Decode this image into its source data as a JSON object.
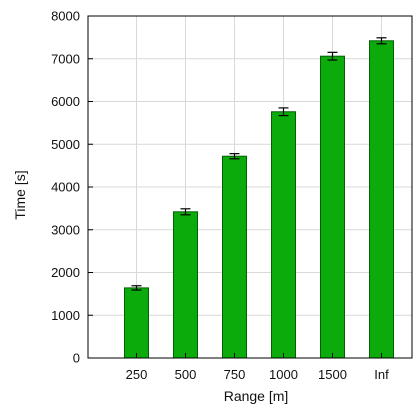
{
  "chart_data": {
    "type": "bar",
    "title": "",
    "xlabel": "Range [m]",
    "ylabel": "Time [s]",
    "categories": [
      "250",
      "500",
      "750",
      "1000",
      "1500",
      "Inf"
    ],
    "values": [
      1640,
      3420,
      4720,
      5760,
      7060,
      7420
    ],
    "error": [
      50,
      70,
      60,
      90,
      90,
      70
    ],
    "ylim": [
      0,
      8000
    ],
    "yticks": [
      0,
      1000,
      2000,
      3000,
      4000,
      5000,
      6000,
      7000,
      8000
    ],
    "grid": true,
    "bar_color": "#0aab0a",
    "bar_edge_color": "#055f05",
    "grid_color": "#d9d9d9"
  }
}
